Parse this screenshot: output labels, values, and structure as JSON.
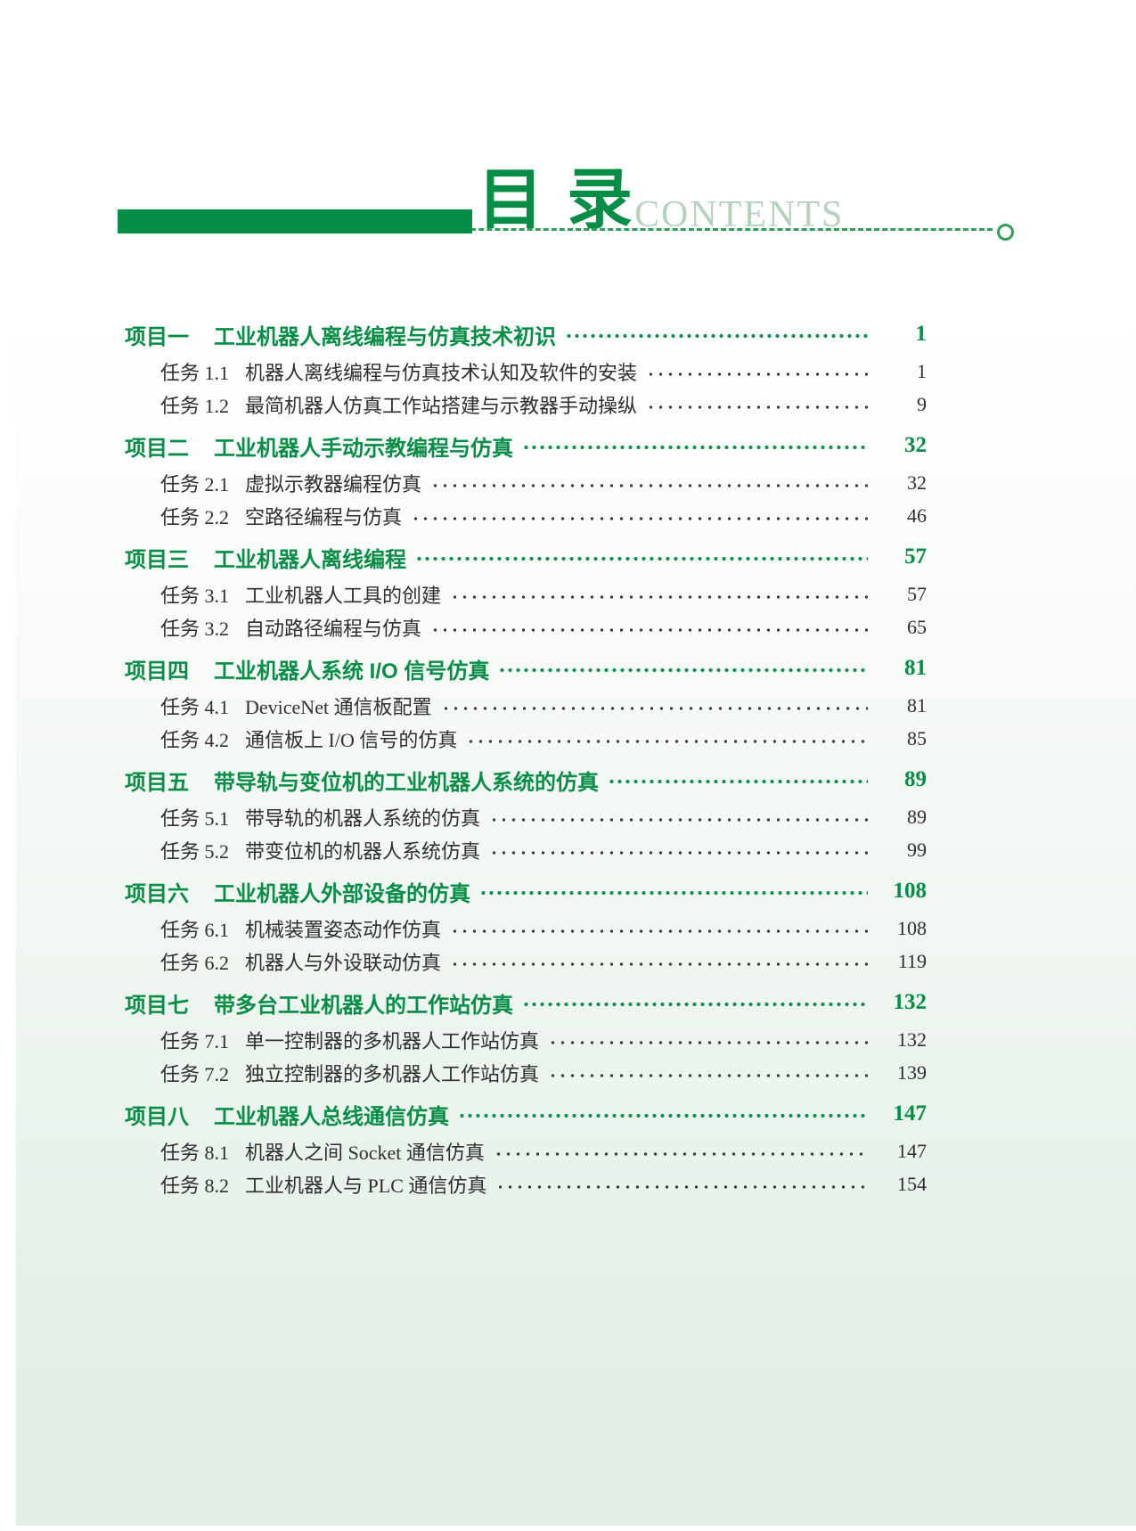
{
  "header": {
    "title_cn": "目录",
    "title_en": "CONTENTS"
  },
  "colors": {
    "green": "#068d46",
    "dash_green": "#2f9e57",
    "contents_light_green": "#b7d1bf",
    "task_text": "#2f2f2f",
    "background_bottom": "#e2eee6"
  },
  "toc": {
    "sections": [
      {
        "label": "项目一",
        "title": "工业机器人离线编程与仿真技术初识",
        "page": "1",
        "tasks": [
          {
            "label": "任务 1.1",
            "title": "机器人离线编程与仿真技术认知及软件的安装",
            "page": "1"
          },
          {
            "label": "任务 1.2",
            "title": "最简机器人仿真工作站搭建与示教器手动操纵",
            "page": "9"
          }
        ]
      },
      {
        "label": "项目二",
        "title": "工业机器人手动示教编程与仿真",
        "page": "32",
        "tasks": [
          {
            "label": "任务 2.1",
            "title": "虚拟示教器编程仿真",
            "page": "32"
          },
          {
            "label": "任务 2.2",
            "title": "空路径编程与仿真",
            "page": "46"
          }
        ]
      },
      {
        "label": "项目三",
        "title": "工业机器人离线编程",
        "page": "57",
        "tasks": [
          {
            "label": "任务 3.1",
            "title": "工业机器人工具的创建",
            "page": "57"
          },
          {
            "label": "任务 3.2",
            "title": "自动路径编程与仿真",
            "page": "65"
          }
        ]
      },
      {
        "label": "项目四",
        "title": "工业机器人系统 I/O 信号仿真",
        "page": "81",
        "tasks": [
          {
            "label": "任务 4.1",
            "title": "DeviceNet 通信板配置",
            "page": "81"
          },
          {
            "label": "任务 4.2",
            "title": "通信板上 I/O 信号的仿真",
            "page": "85"
          }
        ]
      },
      {
        "label": "项目五",
        "title": "带导轨与变位机的工业机器人系统的仿真",
        "page": "89",
        "tasks": [
          {
            "label": "任务 5.1",
            "title": "带导轨的机器人系统的仿真",
            "page": "89"
          },
          {
            "label": "任务 5.2",
            "title": "带变位机的机器人系统仿真",
            "page": "99"
          }
        ]
      },
      {
        "label": "项目六",
        "title": "工业机器人外部设备的仿真",
        "page": "108",
        "tasks": [
          {
            "label": "任务 6.1",
            "title": "机械装置姿态动作仿真",
            "page": "108"
          },
          {
            "label": "任务 6.2",
            "title": "机器人与外设联动仿真",
            "page": "119"
          }
        ]
      },
      {
        "label": "项目七",
        "title": "带多台工业机器人的工作站仿真",
        "page": "132",
        "tasks": [
          {
            "label": "任务 7.1",
            "title": "单一控制器的多机器人工作站仿真",
            "page": "132"
          },
          {
            "label": "任务 7.2",
            "title": "独立控制器的多机器人工作站仿真",
            "page": "139"
          }
        ]
      },
      {
        "label": "项目八",
        "title": "工业机器人总线通信仿真",
        "page": "147",
        "tasks": [
          {
            "label": "任务 8.1",
            "title": "机器人之间 Socket 通信仿真",
            "page": "147"
          },
          {
            "label": "任务 8.2",
            "title": "工业机器人与 PLC 通信仿真",
            "page": "154"
          }
        ]
      }
    ]
  }
}
